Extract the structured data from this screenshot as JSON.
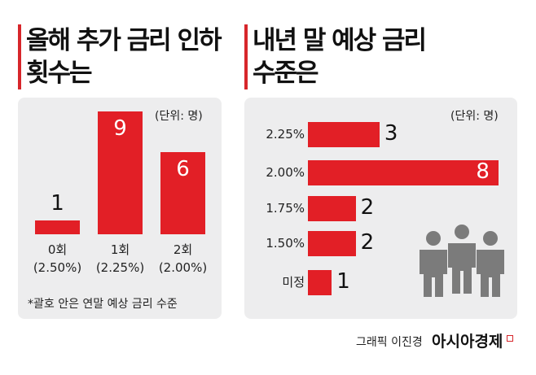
{
  "chart_data": [
    {
      "type": "bar",
      "title": "올해 추가 금리 인하\n횟수는",
      "unit": "(단위: 명)",
      "categories": [
        "0회\n(2.50%)",
        "1회\n(2.25%)",
        "2회\n(2.00%)"
      ],
      "values": [
        1,
        9,
        6
      ],
      "note": "*괄호 안은 연말 예상 금리 수준",
      "ylim": [
        0,
        9
      ]
    },
    {
      "type": "bar",
      "orientation": "horizontal",
      "title": "내년 말 예상 금리\n수준은",
      "unit": "(단위: 명)",
      "categories": [
        "2.25%",
        "2.00%",
        "1.75%",
        "1.50%",
        "미정"
      ],
      "values": [
        3,
        8,
        2,
        2,
        1
      ],
      "xlim": [
        0,
        8
      ]
    }
  ],
  "credit": "그래픽 이진경",
  "brand": "아시아경제",
  "colors": {
    "bar": "#e21f26",
    "panel": "#ededee"
  }
}
